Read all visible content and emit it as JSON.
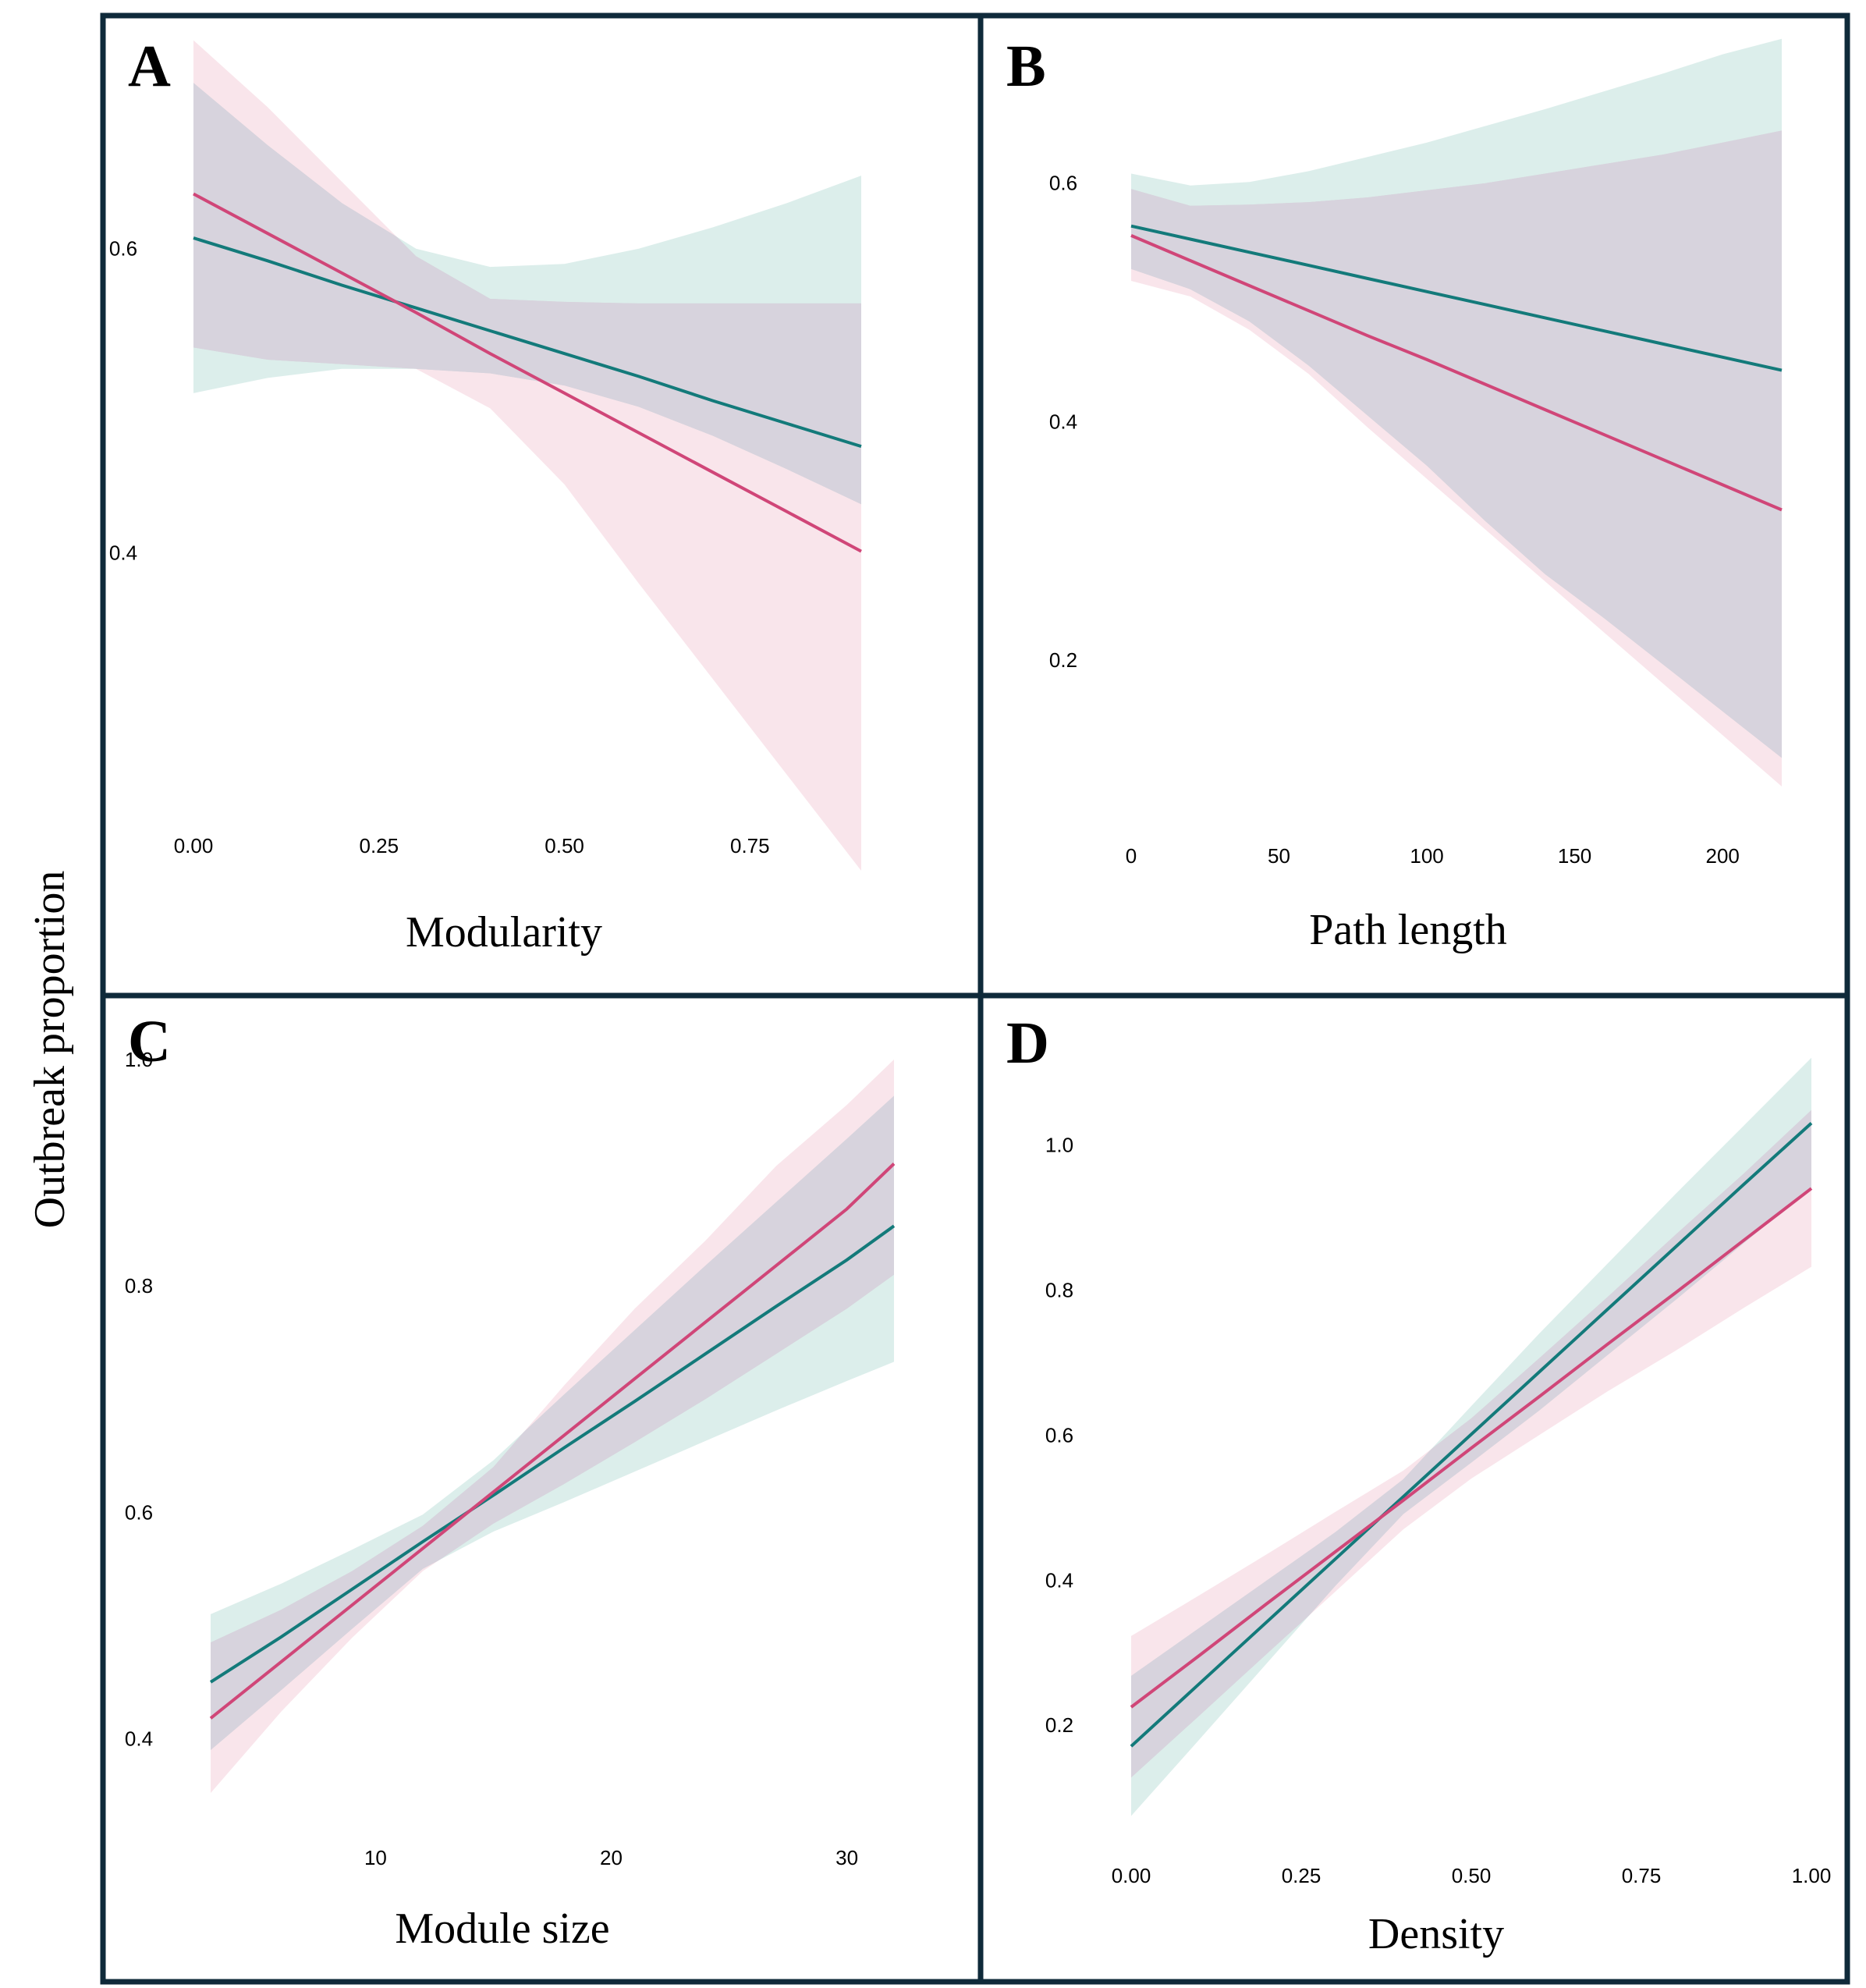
{
  "ylabel": "Outbreak proportion",
  "colors": {
    "teal_line": "#137a7a",
    "teal_band": "#d6ebe8",
    "pink_line": "#d04678",
    "pink_band": "#f8e1e8",
    "overlap_band": "#d7d3dd",
    "border": "#0f2a3a"
  },
  "chart_data": [
    {
      "type": "line",
      "panel": "A",
      "xlabel": "Modularity",
      "xticks": [
        0.0,
        0.25,
        0.5,
        0.75
      ],
      "xtick_labels": [
        "0.00",
        "0.25",
        "0.50",
        "0.75"
      ],
      "yticks": [
        0.4,
        0.6
      ],
      "ytick_labels": [
        "0.4",
        "0.6"
      ],
      "xlim": [
        0.0,
        0.9
      ],
      "ylim": [
        0.23,
        0.745
      ],
      "series": [
        {
          "color": "teal",
          "x": [
            0.0,
            0.1,
            0.2,
            0.3,
            0.4,
            0.5,
            0.6,
            0.7,
            0.8,
            0.9
          ],
          "y": [
            0.607,
            0.592,
            0.576,
            0.561,
            0.546,
            0.531,
            0.516,
            0.5,
            0.485,
            0.47
          ],
          "lower": [
            0.505,
            0.515,
            0.521,
            0.521,
            0.518,
            0.51,
            0.496,
            0.477,
            0.455,
            0.432
          ],
          "upper": [
            0.709,
            0.668,
            0.63,
            0.6,
            0.588,
            0.59,
            0.6,
            0.614,
            0.63,
            0.648
          ]
        },
        {
          "color": "pink",
          "x": [
            0.0,
            0.1,
            0.2,
            0.3,
            0.4,
            0.5,
            0.6,
            0.7,
            0.8,
            0.9
          ],
          "y": [
            0.636,
            0.61,
            0.584,
            0.558,
            0.531,
            0.505,
            0.479,
            0.453,
            0.427,
            0.401
          ],
          "lower": [
            0.535,
            0.527,
            0.524,
            0.521,
            0.495,
            0.445,
            0.38,
            0.317,
            0.254,
            0.191
          ],
          "upper": [
            0.737,
            0.693,
            0.644,
            0.595,
            0.567,
            0.565,
            0.564,
            0.564,
            0.564,
            0.564
          ]
        }
      ]
    },
    {
      "type": "line",
      "panel": "B",
      "xlabel": "Path length",
      "xticks": [
        0,
        50,
        100,
        150,
        200
      ],
      "xtick_labels": [
        "0",
        "50",
        "100",
        "150",
        "200"
      ],
      "yticks": [
        0.2,
        0.4,
        0.6
      ],
      "ytick_labels": [
        "0.2",
        "0.4",
        "0.6"
      ],
      "xlim": [
        0,
        220
      ],
      "ylim": [
        0.06,
        0.73
      ],
      "series": [
        {
          "color": "teal",
          "x": [
            0,
            20,
            40,
            60,
            80,
            100,
            120,
            140,
            160,
            180,
            200,
            220
          ],
          "y": [
            0.564,
            0.553,
            0.542,
            0.531,
            0.52,
            0.509,
            0.498,
            0.487,
            0.476,
            0.465,
            0.454,
            0.443
          ],
          "lower": [
            0.528,
            0.511,
            0.484,
            0.447,
            0.405,
            0.363,
            0.316,
            0.272,
            0.235,
            0.196,
            0.157,
            0.118
          ],
          "upper": [
            0.608,
            0.598,
            0.601,
            0.61,
            0.622,
            0.634,
            0.648,
            0.662,
            0.677,
            0.692,
            0.708,
            0.721
          ]
        },
        {
          "color": "pink",
          "x": [
            0,
            20,
            40,
            60,
            80,
            100,
            120,
            140,
            160,
            180,
            200,
            220
          ],
          "y": [
            0.556,
            0.535,
            0.514,
            0.493,
            0.472,
            0.452,
            0.431,
            0.41,
            0.389,
            0.368,
            0.347,
            0.326
          ],
          "lower": [
            0.518,
            0.505,
            0.477,
            0.44,
            0.395,
            0.352,
            0.309,
            0.266,
            0.223,
            0.18,
            0.137,
            0.094
          ],
          "upper": [
            0.595,
            0.581,
            0.582,
            0.584,
            0.588,
            0.594,
            0.6,
            0.608,
            0.616,
            0.624,
            0.634,
            0.644
          ]
        }
      ]
    },
    {
      "type": "line",
      "panel": "C",
      "xlabel": "Module size",
      "xticks": [
        10,
        20,
        30
      ],
      "xtick_labels": [
        "10",
        "20",
        "30"
      ],
      "yticks": [
        0.4,
        0.6,
        0.8,
        1.0
      ],
      "ytick_labels": [
        "0.4",
        "0.6",
        "0.8",
        "1.0"
      ],
      "xlim": [
        3,
        32
      ],
      "ylim": [
        0.33,
        1.04
      ],
      "series": [
        {
          "color": "teal",
          "x": [
            3,
            6,
            9,
            12,
            15,
            18,
            21,
            24,
            27,
            30,
            32
          ],
          "y": [
            0.45,
            0.49,
            0.532,
            0.574,
            0.615,
            0.657,
            0.698,
            0.74,
            0.782,
            0.823,
            0.853
          ],
          "lower": [
            0.39,
            0.443,
            0.497,
            0.55,
            0.583,
            0.609,
            0.636,
            0.663,
            0.69,
            0.716,
            0.733
          ],
          "upper": [
            0.51,
            0.537,
            0.567,
            0.598,
            0.646,
            0.704,
            0.761,
            0.818,
            0.874,
            0.93,
            0.968
          ]
        },
        {
          "color": "pink",
          "x": [
            3,
            6,
            9,
            12,
            15,
            18,
            21,
            24,
            27,
            30,
            32
          ],
          "y": [
            0.418,
            0.468,
            0.518,
            0.568,
            0.618,
            0.668,
            0.718,
            0.768,
            0.818,
            0.868,
            0.908
          ],
          "lower": [
            0.352,
            0.424,
            0.489,
            0.548,
            0.59,
            0.625,
            0.662,
            0.7,
            0.74,
            0.78,
            0.81
          ],
          "upper": [
            0.485,
            0.514,
            0.548,
            0.588,
            0.64,
            0.712,
            0.78,
            0.84,
            0.906,
            0.96,
            1.0
          ]
        }
      ]
    },
    {
      "type": "line",
      "panel": "D",
      "xlabel": "Density",
      "xticks": [
        0.0,
        0.25,
        0.5,
        0.75,
        1.0
      ],
      "xtick_labels": [
        "0.00",
        "0.25",
        "0.50",
        "0.75",
        "1.00"
      ],
      "yticks": [
        0.2,
        0.4,
        0.6,
        0.8,
        1.0
      ],
      "ytick_labels": [
        "0.2",
        "0.4",
        "0.6",
        "0.8",
        "1.0"
      ],
      "xlim": [
        0.0,
        1.0
      ],
      "ylim": [
        0.04,
        1.18
      ],
      "series": [
        {
          "color": "teal",
          "x": [
            0.0,
            0.1,
            0.2,
            0.3,
            0.4,
            0.5,
            0.6,
            0.7,
            0.8,
            0.9,
            1.0
          ],
          "y": [
            0.171,
            0.257,
            0.343,
            0.429,
            0.515,
            0.601,
            0.687,
            0.773,
            0.859,
            0.945,
            1.03
          ],
          "lower": [
            0.075,
            0.18,
            0.286,
            0.392,
            0.491,
            0.562,
            0.634,
            0.71,
            0.786,
            0.864,
            0.941
          ],
          "upper": [
            0.268,
            0.334,
            0.4,
            0.466,
            0.539,
            0.64,
            0.74,
            0.836,
            0.932,
            1.026,
            1.12
          ]
        },
        {
          "color": "pink",
          "x": [
            0.0,
            0.1,
            0.2,
            0.3,
            0.4,
            0.5,
            0.6,
            0.7,
            0.8,
            0.9,
            1.0
          ],
          "y": [
            0.225,
            0.296,
            0.368,
            0.439,
            0.51,
            0.582,
            0.653,
            0.725,
            0.796,
            0.868,
            0.94
          ],
          "lower": [
            0.128,
            0.213,
            0.299,
            0.384,
            0.47,
            0.54,
            0.6,
            0.66,
            0.716,
            0.775,
            0.832
          ],
          "upper": [
            0.323,
            0.379,
            0.436,
            0.494,
            0.551,
            0.623,
            0.706,
            0.79,
            0.876,
            0.96,
            1.048
          ]
        }
      ]
    }
  ],
  "panels": [
    {
      "letter": "A",
      "xlabel": "Modularity"
    },
    {
      "letter": "B",
      "xlabel": "Path length"
    },
    {
      "letter": "C",
      "xlabel": "Module size"
    },
    {
      "letter": "D",
      "xlabel": "Density"
    }
  ]
}
